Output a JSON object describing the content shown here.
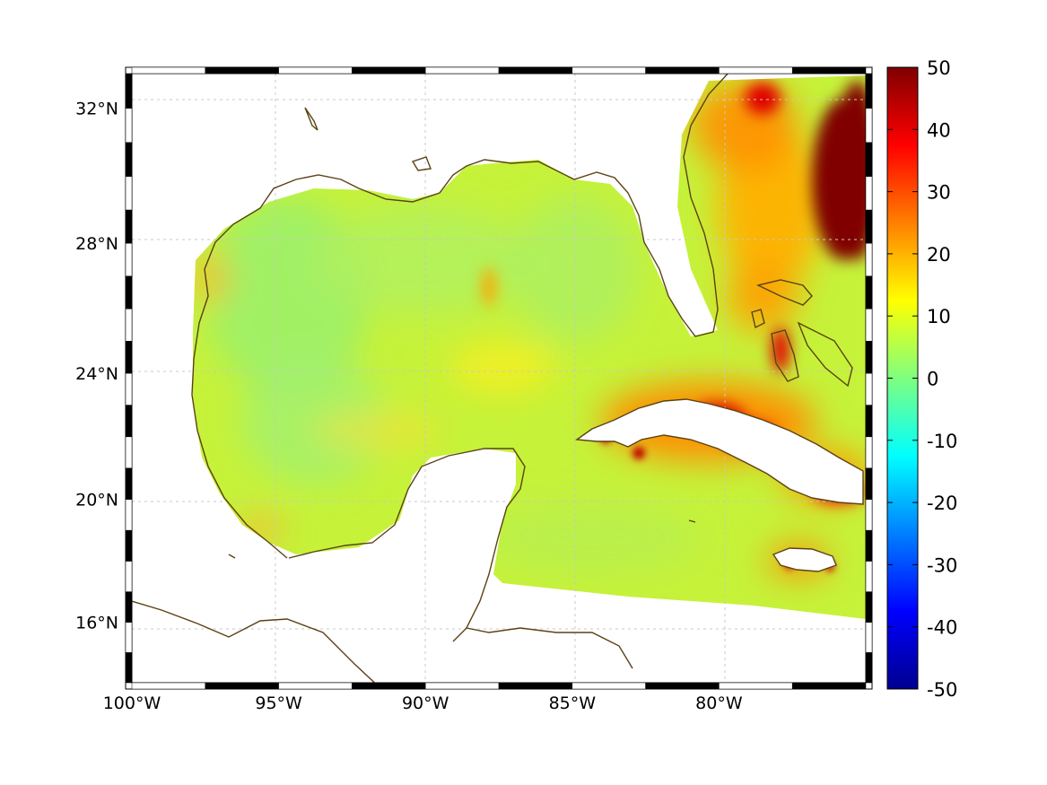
{
  "map": {
    "projection": "mercator",
    "lon_range": [
      -100,
      -75
    ],
    "lat_range": [
      14,
      33
    ],
    "x_ticks": [
      {
        "lon": -100,
        "label": "100°W"
      },
      {
        "lon": -95,
        "label": "95°W"
      },
      {
        "lon": -90,
        "label": "90°W"
      },
      {
        "lon": -85,
        "label": "85°W"
      },
      {
        "lon": -80,
        "label": "80°W"
      }
    ],
    "y_ticks": [
      {
        "lat": 32,
        "label": "32°N"
      },
      {
        "lat": 28,
        "label": "28°N"
      },
      {
        "lat": 24,
        "label": "24°N"
      },
      {
        "lat": 20,
        "label": "20°N"
      },
      {
        "lat": 16,
        "label": "16°N"
      }
    ],
    "grid": true,
    "frame": "black-white-dashed",
    "coastline_color": "#5a4214",
    "land_color": "#ffffff",
    "regions": [
      "Gulf of Mexico",
      "Florida",
      "Cuba",
      "Bahamas",
      "Jamaica",
      "Yucatan Peninsula"
    ]
  },
  "colorbar": {
    "colormap": "jet",
    "min": -50,
    "max": 50,
    "placement": "right",
    "ticks": [
      "50",
      "40",
      "30",
      "20",
      "10",
      "0",
      "-10",
      "-20",
      "-30",
      "-40",
      "-50"
    ]
  }
}
